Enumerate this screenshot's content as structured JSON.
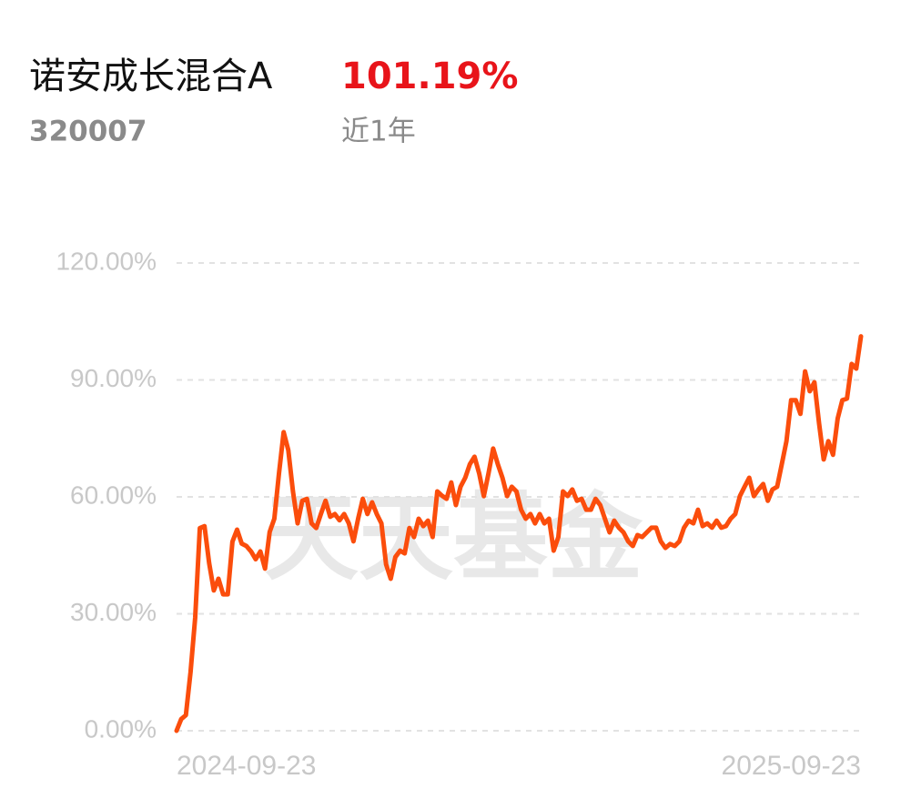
{
  "chart_data": {
    "type": "line",
    "title": "诺安成长混合A",
    "return": "101.19%",
    "code": "320007",
    "period": "近1年",
    "watermark": "天天基金",
    "color": "#fb4d0c",
    "ylim": [
      0,
      120
    ],
    "yticks": [
      {
        "value": 0,
        "label": "0.00%"
      },
      {
        "value": 30,
        "label": "30.00%"
      },
      {
        "value": 60,
        "label": "60.00%"
      },
      {
        "value": 90,
        "label": "90.00%"
      },
      {
        "value": 120,
        "label": "120.00%"
      }
    ],
    "grid": true,
    "categories": [
      "2024-09-23",
      null,
      null,
      null,
      null,
      null,
      null,
      null,
      null,
      null,
      null,
      null,
      null,
      null,
      null,
      null,
      null,
      null,
      null,
      null,
      null,
      null,
      null,
      null,
      null,
      null,
      null,
      null,
      null,
      null,
      null,
      null,
      null,
      null,
      null,
      null,
      null,
      null,
      null,
      null,
      null,
      null,
      null,
      null,
      null,
      null,
      null,
      null,
      null,
      null,
      null,
      null,
      null,
      null,
      null,
      null,
      null,
      null,
      null,
      null,
      null,
      null,
      null,
      null,
      null,
      null,
      null,
      null,
      null,
      null,
      null,
      null,
      null,
      null,
      null,
      null,
      null,
      null,
      null,
      null,
      null,
      null,
      null,
      null,
      null,
      null,
      null,
      null,
      null,
      null,
      null,
      null,
      null,
      null,
      null,
      null,
      null,
      null,
      null,
      null,
      null,
      null,
      null,
      null,
      null,
      null,
      null,
      null,
      null,
      null,
      null,
      null,
      null,
      null,
      null,
      null,
      null,
      null,
      null,
      null,
      null,
      null,
      null,
      null,
      null,
      null,
      null,
      null,
      null,
      null,
      null,
      null,
      null,
      null,
      null,
      null,
      null,
      null,
      null,
      null,
      null,
      null,
      null,
      null,
      null,
      null,
      null,
      "2025-09-23"
    ],
    "values": [
      0,
      3,
      4,
      15,
      29,
      52,
      52.5,
      43,
      36,
      39,
      35,
      35,
      48.5,
      51.6,
      48,
      47.4,
      46,
      44,
      46,
      41.6,
      51,
      54.4,
      66,
      76.6,
      72,
      61.4,
      53.2,
      59,
      59.5,
      53.2,
      52,
      55.6,
      59,
      54.9,
      55.6,
      54,
      55.6,
      53.2,
      48.6,
      54.4,
      59.5,
      55.6,
      58.6,
      55.6,
      53.2,
      42.7,
      39,
      44.6,
      46.2,
      45.5,
      52,
      49.7,
      54.4,
      52.5,
      53.9,
      49.7,
      61.4,
      60.3,
      59.5,
      63.7,
      57.9,
      62.6,
      64.9,
      68.4,
      70.3,
      66,
      60.2,
      66,
      72.4,
      68.4,
      64.9,
      60.2,
      62.6,
      61.4,
      56.7,
      54.4,
      55.6,
      53.2,
      55.6,
      53.2,
      54.4,
      46.2,
      49.7,
      61.4,
      60.2,
      61.9,
      59,
      59.5,
      56.7,
      56.7,
      59.5,
      57.9,
      54.4,
      50.9,
      53.9,
      52.1,
      50.9,
      48.6,
      47.4,
      50.2,
      49.7,
      50.9,
      52.1,
      52.1,
      48.6,
      46.9,
      47.9,
      47.4,
      48.6,
      52.1,
      53.9,
      53.2,
      56.7,
      52.5,
      53.2,
      52.1,
      53.9,
      52.1,
      52.5,
      54.4,
      55.6,
      60.2,
      62.6,
      64.9,
      60.2,
      61.9,
      63.3,
      59,
      61.9,
      62.6,
      68.4,
      74.3,
      84.8,
      84.8,
      81.3,
      92.2,
      87.1,
      89.4,
      78.9,
      69.6,
      74.3,
      70.8,
      80.1,
      84.8,
      85.2,
      94.1,
      92.9,
      101.19
    ]
  }
}
